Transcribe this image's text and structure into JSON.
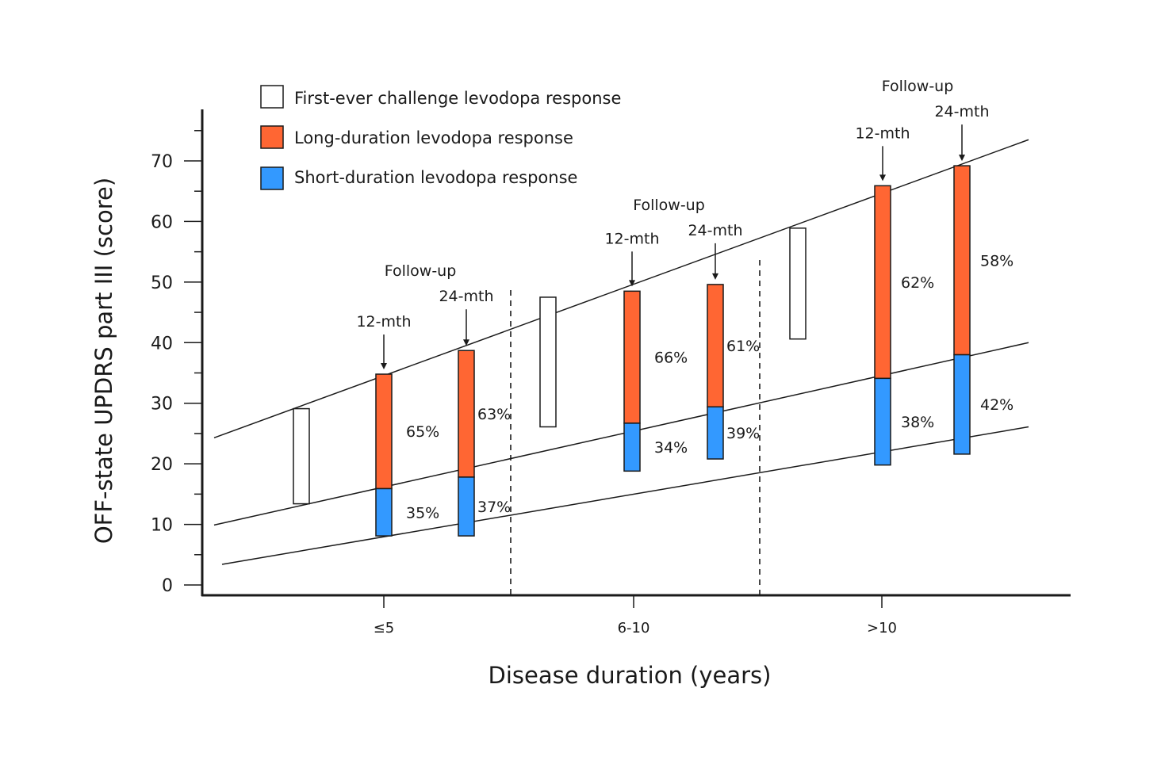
{
  "chart_data": {
    "type": "bar",
    "subtype": "stacked-floating-bar",
    "title": "",
    "xlabel": "Disease duration (years)",
    "ylabel": "OFF-state UPDRS part III (score)",
    "ylim": [
      0,
      78.5
    ],
    "yticks": [
      0,
      10,
      20,
      30,
      40,
      50,
      60,
      70
    ],
    "yminor_ticks": [
      5,
      15,
      25,
      35,
      45,
      55,
      65,
      75
    ],
    "grid": false,
    "legend_position": "top-left",
    "categories": [
      "≤5",
      "6-10",
      ">10"
    ],
    "legend": [
      {
        "key": "first_ever",
        "label": "First-ever challenge levodopa response",
        "color": "#FFFFFF"
      },
      {
        "key": "long",
        "label": "Long-duration levodopa response",
        "color": "#FF6633"
      },
      {
        "key": "short",
        "label": "Short-duration levodopa response",
        "color": "#3399FF"
      }
    ],
    "groups": [
      {
        "category": "≤5",
        "followup_label": "Follow-up",
        "first_ever": {
          "top": 29.1,
          "bottom": 13.4
        },
        "followups": [
          {
            "label": "12-mth",
            "top": 34.8,
            "split": 15.9,
            "bottom": 8.1,
            "long_pct": "65%",
            "short_pct": "35%"
          },
          {
            "label": "24-mth",
            "top": 38.7,
            "split": 17.8,
            "bottom": 8.1,
            "long_pct": "63%",
            "short_pct": "37%"
          }
        ]
      },
      {
        "category": "6-10",
        "followup_label": "Follow-up",
        "first_ever": {
          "top": 47.5,
          "bottom": 26.1
        },
        "followups": [
          {
            "label": "12-mth",
            "top": 48.5,
            "split": 26.7,
            "bottom": 18.8,
            "long_pct": "66%",
            "short_pct": "34%"
          },
          {
            "label": "24-mth",
            "top": 49.6,
            "split": 29.4,
            "bottom": 20.8,
            "long_pct": "61%",
            "short_pct": "39%"
          }
        ]
      },
      {
        "category": ">10",
        "followup_label": "Follow-up",
        "first_ever": {
          "top": 58.9,
          "bottom": 40.6
        },
        "followups": [
          {
            "label": "12-mth",
            "top": 65.9,
            "split": 34.1,
            "bottom": 19.8,
            "long_pct": "62%",
            "short_pct": "38%"
          },
          {
            "label": "24-mth",
            "top": 69.2,
            "split": 38.0,
            "bottom": 21.6,
            "long_pct": "58%",
            "short_pct": "42%"
          }
        ]
      }
    ],
    "trend_lines": [
      {
        "name": "upper-trend",
        "y_start": 24.3,
        "y_end": 73.5
      },
      {
        "name": "middle-trend",
        "y_start": 9.9,
        "y_end": 40.0
      },
      {
        "name": "lower-trend",
        "y_start": 3.4,
        "y_end": 26.1
      }
    ]
  }
}
